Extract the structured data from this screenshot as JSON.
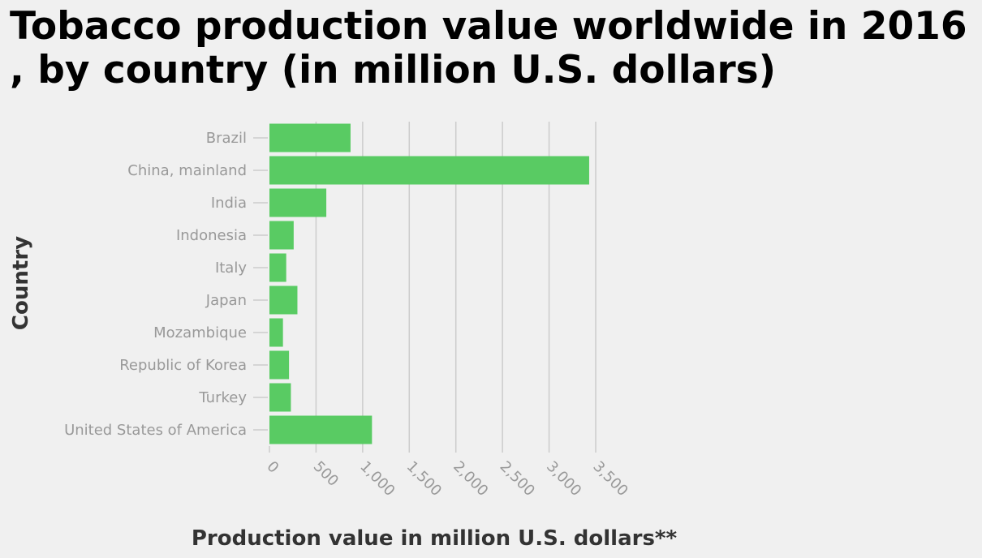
{
  "chart_data": {
    "type": "bar",
    "orientation": "horizontal",
    "title": "Tobacco production value worldwide in 2016 , by country (in million U.S. dollars)",
    "xlabel": "Production value in million U.S. dollars**",
    "ylabel": "Country",
    "categories": [
      "Brazil",
      "China, mainland",
      "India",
      "Indonesia",
      "Italy",
      "Japan",
      "Mozambique",
      "Republic of Korea",
      "Turkey",
      "United States of America"
    ],
    "values": [
      870,
      3430,
      610,
      260,
      180,
      300,
      145,
      210,
      230,
      1100
    ],
    "xlim": [
      0,
      3500
    ],
    "xticks": [
      "0",
      "500",
      "1,000",
      "1,500",
      "2,000",
      "2,500",
      "3,000",
      "3,500"
    ],
    "grid": true,
    "bar_color": "#59cb63",
    "grid_color": "#cccccc"
  }
}
